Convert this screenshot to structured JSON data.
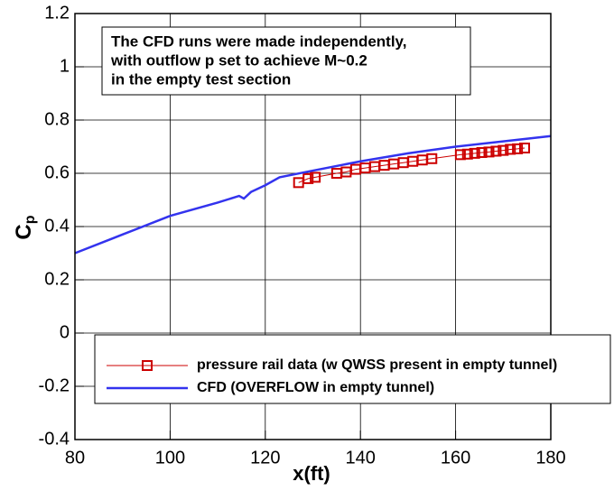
{
  "chart_data": {
    "type": "line",
    "xlabel": "x(ft)",
    "ylabel": [
      "C",
      "p"
    ],
    "annotation": [
      "The CFD runs were made independently,",
      "with outflow p set to achieve M~0.2",
      "in the empty test section"
    ],
    "xlim": [
      80,
      180
    ],
    "xticks": [
      80,
      100,
      120,
      140,
      160,
      180
    ],
    "ylim": [
      -0.4,
      1.2
    ],
    "yticks": [
      1.2,
      1,
      0.8,
      0.6,
      0.4,
      0.2,
      0,
      -0.2,
      -0.4
    ],
    "grid": true,
    "series": [
      {
        "name": "pressure rail data (w QWSS present in empty tunnel)",
        "color": "#cc0000",
        "marker": "square",
        "x": [
          127,
          129,
          130.5,
          135,
          137,
          139,
          141,
          143,
          145,
          147,
          149,
          151,
          153,
          155,
          161,
          162.5,
          164,
          165.5,
          167,
          168.5,
          170,
          171.5,
          173,
          174.5
        ],
        "values": [
          0.565,
          0.58,
          0.585,
          0.6,
          0.605,
          0.615,
          0.62,
          0.625,
          0.63,
          0.635,
          0.64,
          0.645,
          0.65,
          0.655,
          0.67,
          0.672,
          0.675,
          0.678,
          0.68,
          0.683,
          0.686,
          0.69,
          0.692,
          0.695
        ]
      },
      {
        "name": "CFD (OVERFLOW in empty tunnel)",
        "color": "#3333ee",
        "x": [
          80,
          90,
          100,
          110,
          114.5,
          115.5,
          117,
          120,
          123,
          130,
          140,
          150,
          160,
          170,
          180
        ],
        "values": [
          0.3,
          0.37,
          0.44,
          0.49,
          0.515,
          0.505,
          0.53,
          0.555,
          0.585,
          0.61,
          0.645,
          0.675,
          0.7,
          0.72,
          0.74
        ]
      }
    ]
  }
}
